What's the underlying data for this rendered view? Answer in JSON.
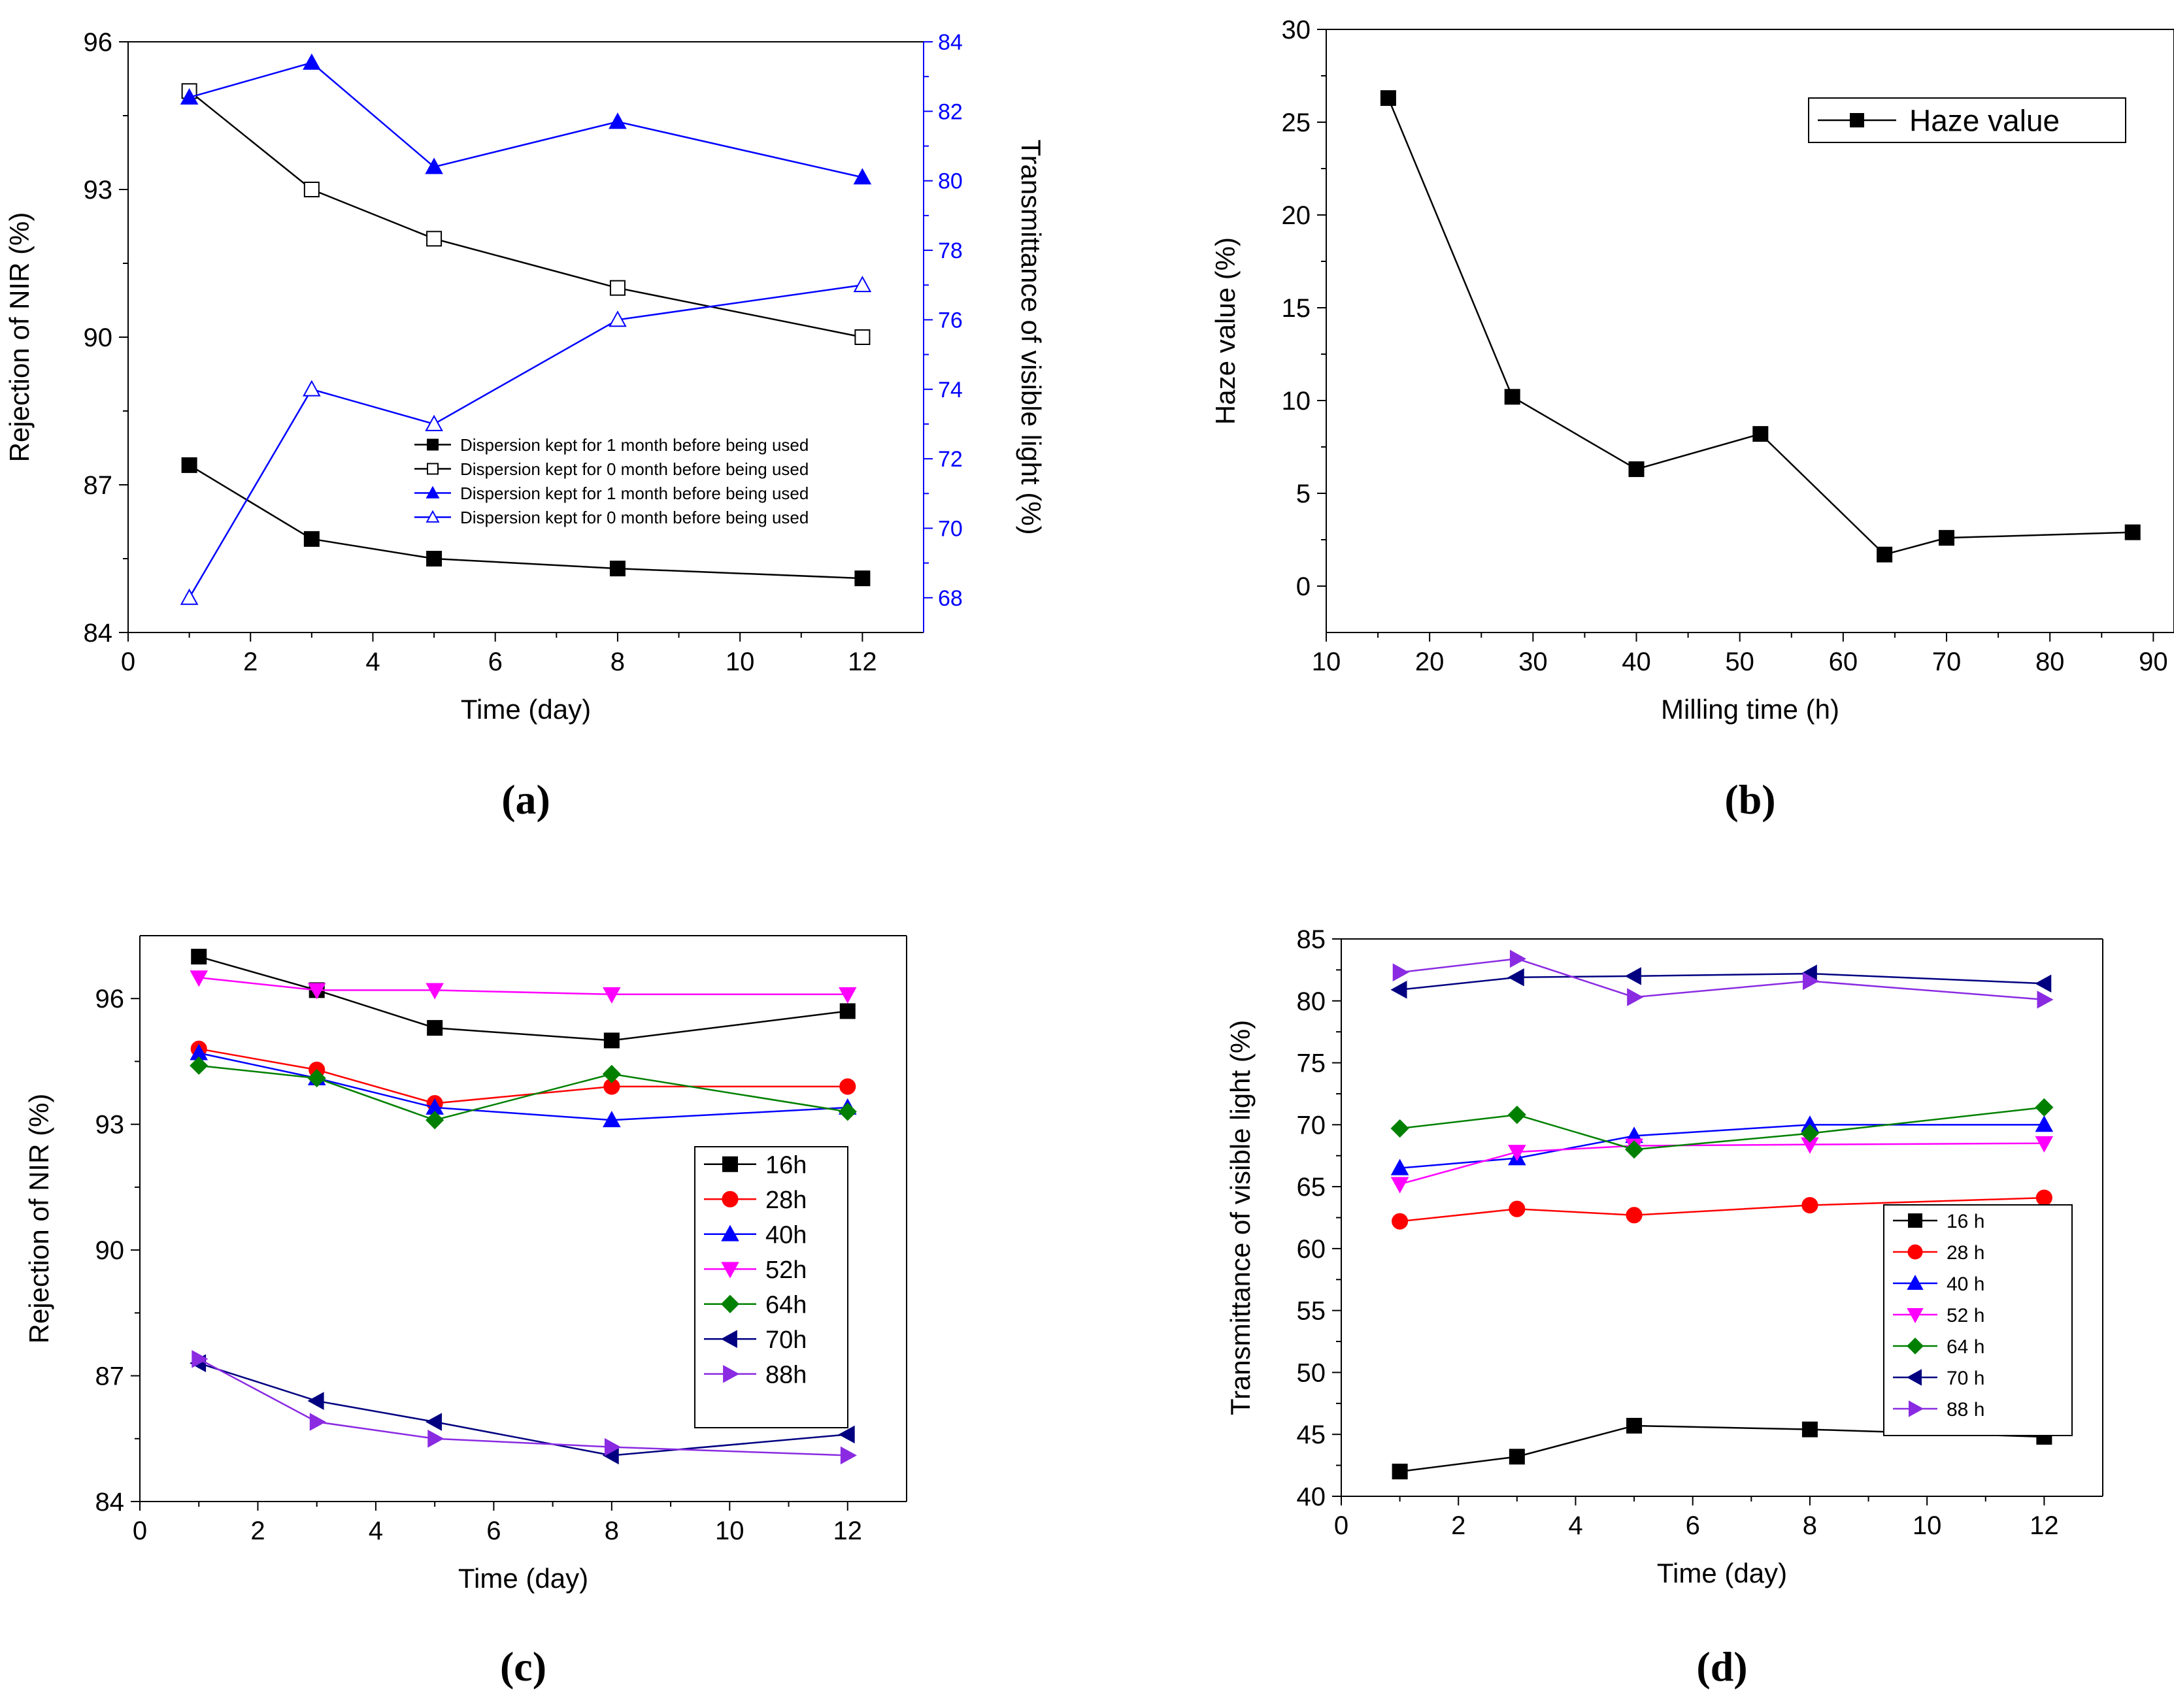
{
  "chart_data": [
    {
      "panel": "a",
      "type": "line",
      "caption": "(a)",
      "xlabel": "Time (day)",
      "ylabel": "Rejection of NIR (%)",
      "y2label": "Transmittance of visible light (%)",
      "xlim": [
        0,
        13
      ],
      "xticks": [
        0,
        2,
        4,
        6,
        8,
        10,
        12
      ],
      "ylim": [
        84,
        96
      ],
      "yticks": [
        84,
        87,
        90,
        93,
        96
      ],
      "y2lim": [
        67,
        84
      ],
      "y2ticks": [
        68,
        70,
        72,
        74,
        76,
        78,
        80,
        82,
        84
      ],
      "legend_position": "bottom-right",
      "series": [
        {
          "name": "Dispersion kept for 1 month before being used",
          "axis": "left",
          "color": "#000000",
          "marker": "square",
          "filled": true,
          "x": [
            1,
            3,
            5,
            8,
            12
          ],
          "values": [
            87.4,
            85.9,
            85.5,
            85.3,
            85.1
          ]
        },
        {
          "name": "Dispersion kept for 0 month before being used",
          "axis": "left",
          "color": "#000000",
          "marker": "square",
          "filled": false,
          "x": [
            1,
            3,
            5,
            8,
            12
          ],
          "values": [
            95.0,
            93.0,
            92.0,
            91.0,
            90.0
          ]
        },
        {
          "name": "Dispersion kept for 1 month before being used",
          "axis": "right",
          "color": "#0000ff",
          "marker": "triangle-up",
          "filled": true,
          "x": [
            1,
            3,
            5,
            8,
            12
          ],
          "values": [
            82.4,
            83.4,
            80.4,
            81.7,
            80.1
          ]
        },
        {
          "name": "Dispersion kept for 0 month before being used",
          "axis": "right",
          "color": "#0000ff",
          "marker": "triangle-up",
          "filled": false,
          "x": [
            1,
            3,
            5,
            8,
            12
          ],
          "values": [
            68.0,
            74.0,
            73.0,
            76.0,
            77.0
          ]
        }
      ]
    },
    {
      "panel": "b",
      "type": "line",
      "caption": "(b)",
      "xlabel": "Milling time (h)",
      "ylabel": "Haze value (%)",
      "xlim": [
        10,
        92
      ],
      "xticks": [
        10,
        20,
        30,
        40,
        50,
        60,
        70,
        80,
        90
      ],
      "ylim": [
        -2.5,
        30
      ],
      "yticks": [
        0,
        5,
        10,
        15,
        20,
        25,
        30
      ],
      "legend_position": "top-right",
      "series": [
        {
          "name": "Haze value",
          "color": "#000000",
          "marker": "square",
          "filled": true,
          "x": [
            16,
            28,
            40,
            52,
            64,
            70,
            88
          ],
          "values": [
            26.3,
            10.2,
            6.3,
            8.2,
            1.7,
            2.6,
            2.9
          ]
        }
      ]
    },
    {
      "panel": "c",
      "type": "line",
      "caption": "(c)",
      "xlabel": "Time (day)",
      "ylabel": "Rejection of NIR (%)",
      "xlim": [
        0,
        13
      ],
      "xticks": [
        0,
        2,
        4,
        6,
        8,
        10,
        12
      ],
      "ylim": [
        84,
        97.5
      ],
      "yticks": [
        84,
        87,
        90,
        93,
        96
      ],
      "legend_position": "center-right",
      "series": [
        {
          "name": "16h",
          "color": "#000000",
          "marker": "square",
          "x": [
            1,
            3,
            5,
            8,
            12
          ],
          "values": [
            97.0,
            96.2,
            95.3,
            95.0,
            95.7
          ]
        },
        {
          "name": "28h",
          "color": "#ff0000",
          "marker": "circle",
          "x": [
            1,
            3,
            5,
            8,
            12
          ],
          "values": [
            94.8,
            94.3,
            93.5,
            93.9,
            93.9
          ]
        },
        {
          "name": "40h",
          "color": "#0000ff",
          "marker": "triangle-up",
          "x": [
            1,
            3,
            5,
            8,
            12
          ],
          "values": [
            94.7,
            94.1,
            93.4,
            93.1,
            93.4
          ]
        },
        {
          "name": "52h",
          "color": "#ff00ff",
          "marker": "triangle-down",
          "x": [
            1,
            3,
            5,
            8,
            12
          ],
          "values": [
            96.5,
            96.2,
            96.2,
            96.1,
            96.1
          ]
        },
        {
          "name": "64h",
          "color": "#008000",
          "marker": "diamond",
          "x": [
            1,
            3,
            5,
            8,
            12
          ],
          "values": [
            94.4,
            94.1,
            93.1,
            94.2,
            93.3
          ]
        },
        {
          "name": "70h",
          "color": "#000080",
          "marker": "triangle-left",
          "x": [
            1,
            3,
            5,
            8,
            12
          ],
          "values": [
            87.3,
            86.4,
            85.9,
            85.1,
            85.6
          ]
        },
        {
          "name": "88h",
          "color": "#8a2be2",
          "marker": "triangle-right",
          "x": [
            1,
            3,
            5,
            8,
            12
          ],
          "values": [
            87.4,
            85.9,
            85.5,
            85.3,
            85.1
          ]
        }
      ]
    },
    {
      "panel": "d",
      "type": "line",
      "caption": "(d)",
      "xlabel": "Time (day)",
      "ylabel": "Transmittance of visible light (%)",
      "xlim": [
        0,
        13
      ],
      "xticks": [
        0,
        2,
        4,
        6,
        8,
        10,
        12
      ],
      "ylim": [
        40,
        85
      ],
      "yticks": [
        40,
        45,
        50,
        55,
        60,
        65,
        70,
        75,
        80,
        85
      ],
      "legend_position": "center-right",
      "series": [
        {
          "name": "16 h",
          "color": "#000000",
          "marker": "square",
          "x": [
            1,
            3,
            5,
            8,
            12
          ],
          "values": [
            42.0,
            43.2,
            45.7,
            45.4,
            44.8
          ]
        },
        {
          "name": "28 h",
          "color": "#ff0000",
          "marker": "circle",
          "x": [
            1,
            3,
            5,
            8,
            12
          ],
          "values": [
            62.2,
            63.2,
            62.7,
            63.5,
            64.1
          ]
        },
        {
          "name": "40 h",
          "color": "#0000ff",
          "marker": "triangle-up",
          "x": [
            1,
            3,
            5,
            8,
            12
          ],
          "values": [
            66.5,
            67.3,
            69.1,
            70.0,
            70.0
          ]
        },
        {
          "name": "52 h",
          "color": "#ff00ff",
          "marker": "triangle-down",
          "x": [
            1,
            3,
            5,
            8,
            12
          ],
          "values": [
            65.2,
            67.8,
            68.3,
            68.4,
            68.5
          ]
        },
        {
          "name": "64 h",
          "color": "#008000",
          "marker": "diamond",
          "x": [
            1,
            3,
            5,
            8,
            12
          ],
          "values": [
            69.7,
            70.8,
            68.0,
            69.3,
            71.4
          ]
        },
        {
          "name": "70 h",
          "color": "#000080",
          "marker": "triangle-left",
          "x": [
            1,
            3,
            5,
            8,
            12
          ],
          "values": [
            80.9,
            81.9,
            82.0,
            82.2,
            81.4
          ]
        },
        {
          "name": "88 h",
          "color": "#8a2be2",
          "marker": "triangle-right",
          "x": [
            1,
            3,
            5,
            8,
            12
          ],
          "values": [
            82.3,
            83.4,
            80.3,
            81.6,
            80.1
          ]
        }
      ]
    }
  ]
}
